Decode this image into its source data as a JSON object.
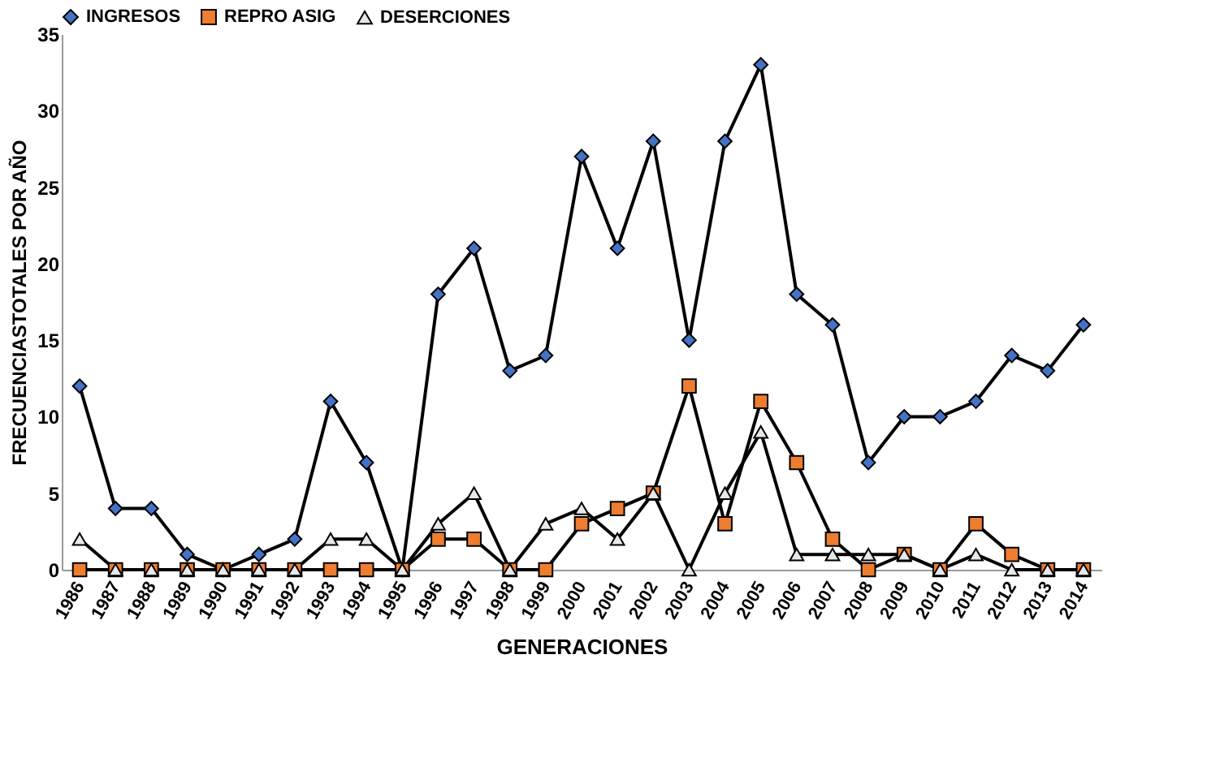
{
  "chart_data": {
    "type": "line",
    "xlabel": "GENERACIONES",
    "ylabel": "FRECUENCIASTOTALES POR AÑO",
    "categories": [
      "1986",
      "1987",
      "1988",
      "1989",
      "1990",
      "1991",
      "1992",
      "1993",
      "1994",
      "1995",
      "1996",
      "1997",
      "1998",
      "1999",
      "2000",
      "2001",
      "2002",
      "2003",
      "2004",
      "2005",
      "2006",
      "2007",
      "2008",
      "2009",
      "2010",
      "2011",
      "2012",
      "2013",
      "2014"
    ],
    "series": [
      {
        "name": "INGRESOS",
        "color": "#4472c4",
        "marker": "diamond",
        "values": [
          12,
          4,
          4,
          1,
          0,
          1,
          2,
          11,
          7,
          0,
          18,
          21,
          13,
          14,
          27,
          21,
          28,
          15,
          28,
          33,
          18,
          16,
          7,
          10,
          10,
          11,
          14,
          13,
          16
        ]
      },
      {
        "name": "REPRO ASIG",
        "color": "#ed7d31",
        "marker": "square",
        "values": [
          0,
          0,
          0,
          0,
          0,
          0,
          0,
          0,
          0,
          0,
          2,
          2,
          0,
          0,
          3,
          4,
          5,
          12,
          3,
          11,
          7,
          2,
          0,
          1,
          0,
          3,
          1,
          0,
          0
        ]
      },
      {
        "name": "DESERCIONES",
        "color": "#e8e8e8",
        "marker": "triangle",
        "values": [
          2,
          0,
          0,
          0,
          0,
          0,
          0,
          2,
          2,
          0,
          3,
          5,
          0,
          3,
          4,
          2,
          5,
          0,
          5,
          9,
          1,
          1,
          1,
          1,
          0,
          1,
          0,
          0,
          0
        ]
      }
    ],
    "ylim": [
      0,
      35
    ],
    "yticks": [
      0,
      5,
      10,
      15,
      20,
      25,
      30,
      35
    ],
    "grid": false,
    "legend": "top",
    "line_style": "solid"
  }
}
